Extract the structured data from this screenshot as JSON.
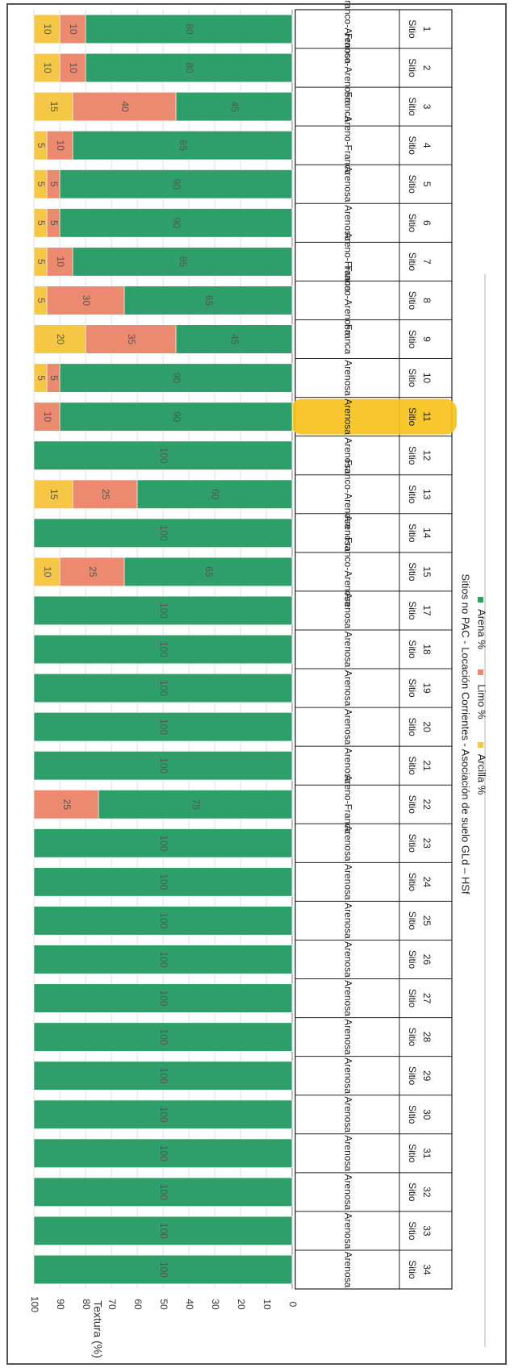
{
  "chart_data": {
    "type": "bar",
    "orientation": "horizontal-stacked",
    "ylabel": "Textura (%)",
    "xlabel": "Sitios no PAC - Locación Corrientes - Asociación de suelo GLd – HSf",
    "ylim": [
      0,
      100
    ],
    "yticks": [
      "0",
      "10",
      "20",
      "30",
      "40",
      "50",
      "60",
      "70",
      "80",
      "90",
      "100"
    ],
    "grid": true,
    "legend_position": "bottom",
    "highlighted_category": "Sitio 11",
    "colors": {
      "arena": "#2e9e6b",
      "limo": "#ec8a6f",
      "arcilla": "#f6c745",
      "highlight": "#f7c21b"
    },
    "categories": [
      {
        "sitio": "Sitio",
        "num": "1",
        "textura": "Franco-Arenosa"
      },
      {
        "sitio": "Sitio",
        "num": "2",
        "textura": "Franco-Arenosa"
      },
      {
        "sitio": "Sitio",
        "num": "3",
        "textura": "Franca"
      },
      {
        "sitio": "Sitio",
        "num": "4",
        "textura": "Areno-Franca"
      },
      {
        "sitio": "Sitio",
        "num": "5",
        "textura": "Arenosa"
      },
      {
        "sitio": "Sitio",
        "num": "6",
        "textura": "Arenosa"
      },
      {
        "sitio": "Sitio",
        "num": "7",
        "textura": "Areno-Franca"
      },
      {
        "sitio": "Sitio",
        "num": "8",
        "textura": "Franco-Arenosa"
      },
      {
        "sitio": "Sitio",
        "num": "9",
        "textura": "Franca"
      },
      {
        "sitio": "Sitio",
        "num": "10",
        "textura": "Arenosa"
      },
      {
        "sitio": "Sitio",
        "num": "11",
        "textura": "Arenosa"
      },
      {
        "sitio": "Sitio",
        "num": "12",
        "textura": "Arenosa"
      },
      {
        "sitio": "Sitio",
        "num": "13",
        "textura": "Franco-Arenosa"
      },
      {
        "sitio": "Sitio",
        "num": "14",
        "textura": "Arenosa"
      },
      {
        "sitio": "Sitio",
        "num": "15",
        "textura": "Franco-Arenosa"
      },
      {
        "sitio": "Sitio",
        "num": "17",
        "textura": "Arenosa"
      },
      {
        "sitio": "Sitio",
        "num": "18",
        "textura": "Arenosa"
      },
      {
        "sitio": "Sitio",
        "num": "19",
        "textura": "Arenosa"
      },
      {
        "sitio": "Sitio",
        "num": "20",
        "textura": "Arenosa"
      },
      {
        "sitio": "Sitio",
        "num": "21",
        "textura": "Arenosa"
      },
      {
        "sitio": "Sitio",
        "num": "22",
        "textura": "Areno-Franca"
      },
      {
        "sitio": "Sitio",
        "num": "23",
        "textura": "Arenosa"
      },
      {
        "sitio": "Sitio",
        "num": "24",
        "textura": "Arenosa"
      },
      {
        "sitio": "Sitio",
        "num": "25",
        "textura": "Arenosa"
      },
      {
        "sitio": "Sitio",
        "num": "26",
        "textura": "Arenosa"
      },
      {
        "sitio": "Sitio",
        "num": "27",
        "textura": "Arenosa"
      },
      {
        "sitio": "Sitio",
        "num": "28",
        "textura": "Arenosa"
      },
      {
        "sitio": "Sitio",
        "num": "29",
        "textura": "Arenosa"
      },
      {
        "sitio": "Sitio",
        "num": "30",
        "textura": "Arenosa"
      },
      {
        "sitio": "Sitio",
        "num": "31",
        "textura": "Arenosa"
      },
      {
        "sitio": "Sitio",
        "num": "32",
        "textura": "Arenosa"
      },
      {
        "sitio": "Sitio",
        "num": "33",
        "textura": "Arenosa"
      },
      {
        "sitio": "Sitio",
        "num": "34",
        "textura": "Arenosa"
      }
    ],
    "series": [
      {
        "name": "Arena %",
        "key": "arena",
        "values": [
          80,
          80,
          45,
          85,
          90,
          90,
          85,
          65,
          45,
          90,
          90,
          100,
          60,
          100,
          65,
          100,
          100,
          100,
          100,
          100,
          75,
          100,
          100,
          100,
          100,
          100,
          100,
          100,
          100,
          100,
          100,
          100,
          100
        ]
      },
      {
        "name": "Limo %",
        "key": "limo",
        "values": [
          10,
          10,
          40,
          10,
          5,
          5,
          10,
          30,
          35,
          5,
          10,
          0,
          25,
          0,
          25,
          0,
          0,
          0,
          0,
          0,
          25,
          0,
          0,
          0,
          0,
          0,
          0,
          0,
          0,
          0,
          0,
          0,
          0
        ]
      },
      {
        "name": "Arcilla %",
        "key": "arcilla",
        "values": [
          10,
          10,
          15,
          5,
          5,
          5,
          5,
          5,
          20,
          5,
          0,
          0,
          15,
          0,
          10,
          0,
          0,
          0,
          0,
          0,
          0,
          0,
          0,
          0,
          0,
          0,
          0,
          0,
          0,
          0,
          0,
          0,
          0
        ]
      }
    ]
  }
}
